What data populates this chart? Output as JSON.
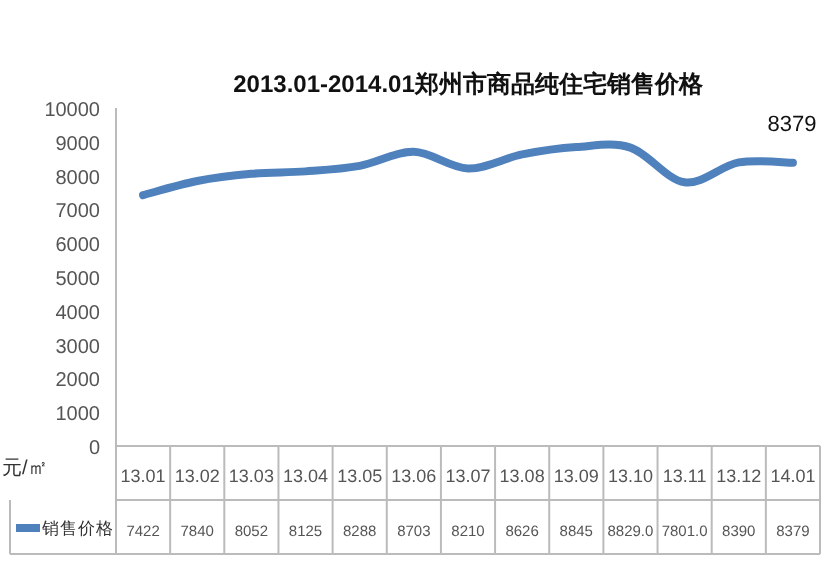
{
  "chart_data": {
    "type": "line",
    "title": "2013.01-2014.01郑州市商品纯住宅销售价格",
    "ylabel": "元/㎡",
    "categories": [
      "13.01",
      "13.02",
      "13.03",
      "13.04",
      "13.05",
      "13.06",
      "13.07",
      "13.08",
      "13.09",
      "13.10",
      "13.11",
      "13.12",
      "14.01"
    ],
    "series": [
      {
        "name": "销售价格",
        "color": "#4f81bd",
        "values": [
          7422,
          7840,
          8052,
          8125,
          8288,
          8703,
          8210,
          8626,
          8845,
          8829,
          7801,
          8390,
          8379
        ],
        "value_labels": [
          "7422",
          "7840",
          "8052",
          "8125",
          "8288",
          "8703",
          "8210",
          "8626",
          "8845",
          "8829.0",
          "7801.0",
          "8390",
          "8379"
        ]
      }
    ],
    "ylim": [
      0,
      10000
    ],
    "yticks": [
      0,
      1000,
      2000,
      3000,
      4000,
      5000,
      6000,
      7000,
      8000,
      9000,
      10000
    ],
    "legend": "bottom",
    "grid": false,
    "marker": "none",
    "line_style": "solid",
    "annotations": [
      {
        "text": "8379",
        "x": "14.01",
        "y": 8379
      }
    ]
  }
}
